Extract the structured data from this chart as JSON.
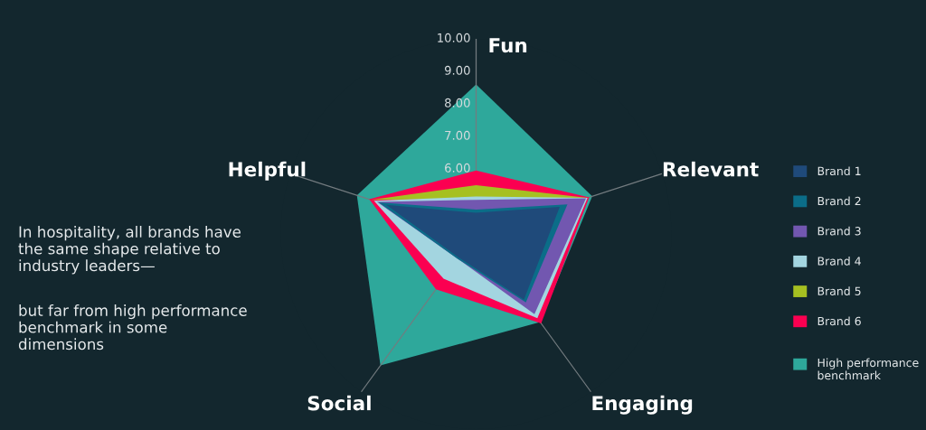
{
  "chart_data": {
    "type": "radar",
    "categories": [
      "Fun",
      "Relevant",
      "Engaging",
      "Social",
      "Helpful"
    ],
    "ylim": [
      4,
      10
    ],
    "yticks": [
      {
        "value": 6,
        "label": "6.00"
      },
      {
        "value": 7,
        "label": "7.00"
      },
      {
        "value": 8,
        "label": "8.00"
      },
      {
        "value": 9,
        "label": "9.00"
      },
      {
        "value": 10,
        "label": "10.00"
      }
    ],
    "grid": "x",
    "legend": "right",
    "series": [
      {
        "name": "Brand 1",
        "color": "#1f4a7a",
        "values": [
          4.65,
          6.7,
          6.5,
          4.9,
          6.9
        ]
      },
      {
        "name": "Brand 2",
        "color": "#0b6d88",
        "values": [
          4.75,
          6.95,
          6.6,
          4.95,
          7.15
        ]
      },
      {
        "name": "Brand 3",
        "color": "#7257b0",
        "values": [
          5.05,
          7.55,
          7.05,
          4.95,
          7.2
        ]
      },
      {
        "name": "Brand 4",
        "color": "#a3d5e0",
        "values": [
          5.15,
          7.6,
          7.2,
          5.7,
          7.3
        ]
      },
      {
        "name": "Brand 5",
        "color": "#a6c021",
        "values": [
          5.5,
          7.6,
          null,
          null,
          7.4
        ]
      },
      {
        "name": "Brand 6",
        "color": "#fb0051",
        "values": [
          5.95,
          7.65,
          7.4,
          6.1,
          7.45
        ]
      },
      {
        "name": "High performance benchmark",
        "color": "#2ea89b",
        "values": [
          8.6,
          7.75,
          7.35,
          9.0,
          7.85
        ]
      }
    ],
    "annotations": [
      "In hospitality, all brands have the same shape relative to industry leaders—",
      "but far from high performance benchmark in some dimensions"
    ]
  }
}
